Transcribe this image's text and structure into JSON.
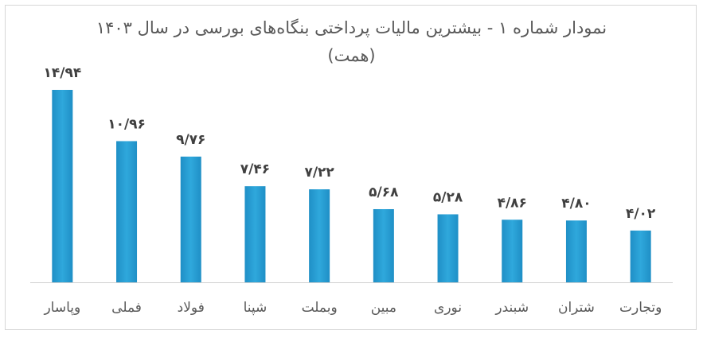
{
  "chart_data": {
    "type": "bar",
    "title": "نمودار شماره ۱ - بیشترین مالیات پرداختی بنگاه‌های بورسی در سال ۱۴۰۳",
    "subtitle": "(همت)",
    "categories": [
      "وپاسار",
      "فملی",
      "فولاد",
      "شپنا",
      "وبملت",
      "مبین",
      "نوری",
      "شبندر",
      "شتران",
      "وتجارت"
    ],
    "values": [
      14.94,
      10.96,
      9.76,
      7.46,
      7.22,
      5.68,
      5.28,
      4.86,
      4.8,
      4.02
    ],
    "value_labels": [
      "۱۴/۹۴",
      "۱۰/۹۶",
      "۹/۷۶",
      "۷/۴۶",
      "۷/۲۲",
      "۵/۶۸",
      "۵/۲۸",
      "۴/۸۶",
      "۴/۸۰",
      "۴/۰۲"
    ],
    "xlabel": "",
    "ylabel": "",
    "ylim": [
      0,
      16
    ],
    "grid": false,
    "legend": "none",
    "bar_color_top": "#2fa8dc",
    "bar_color_bottom": "#1f8fc6"
  }
}
